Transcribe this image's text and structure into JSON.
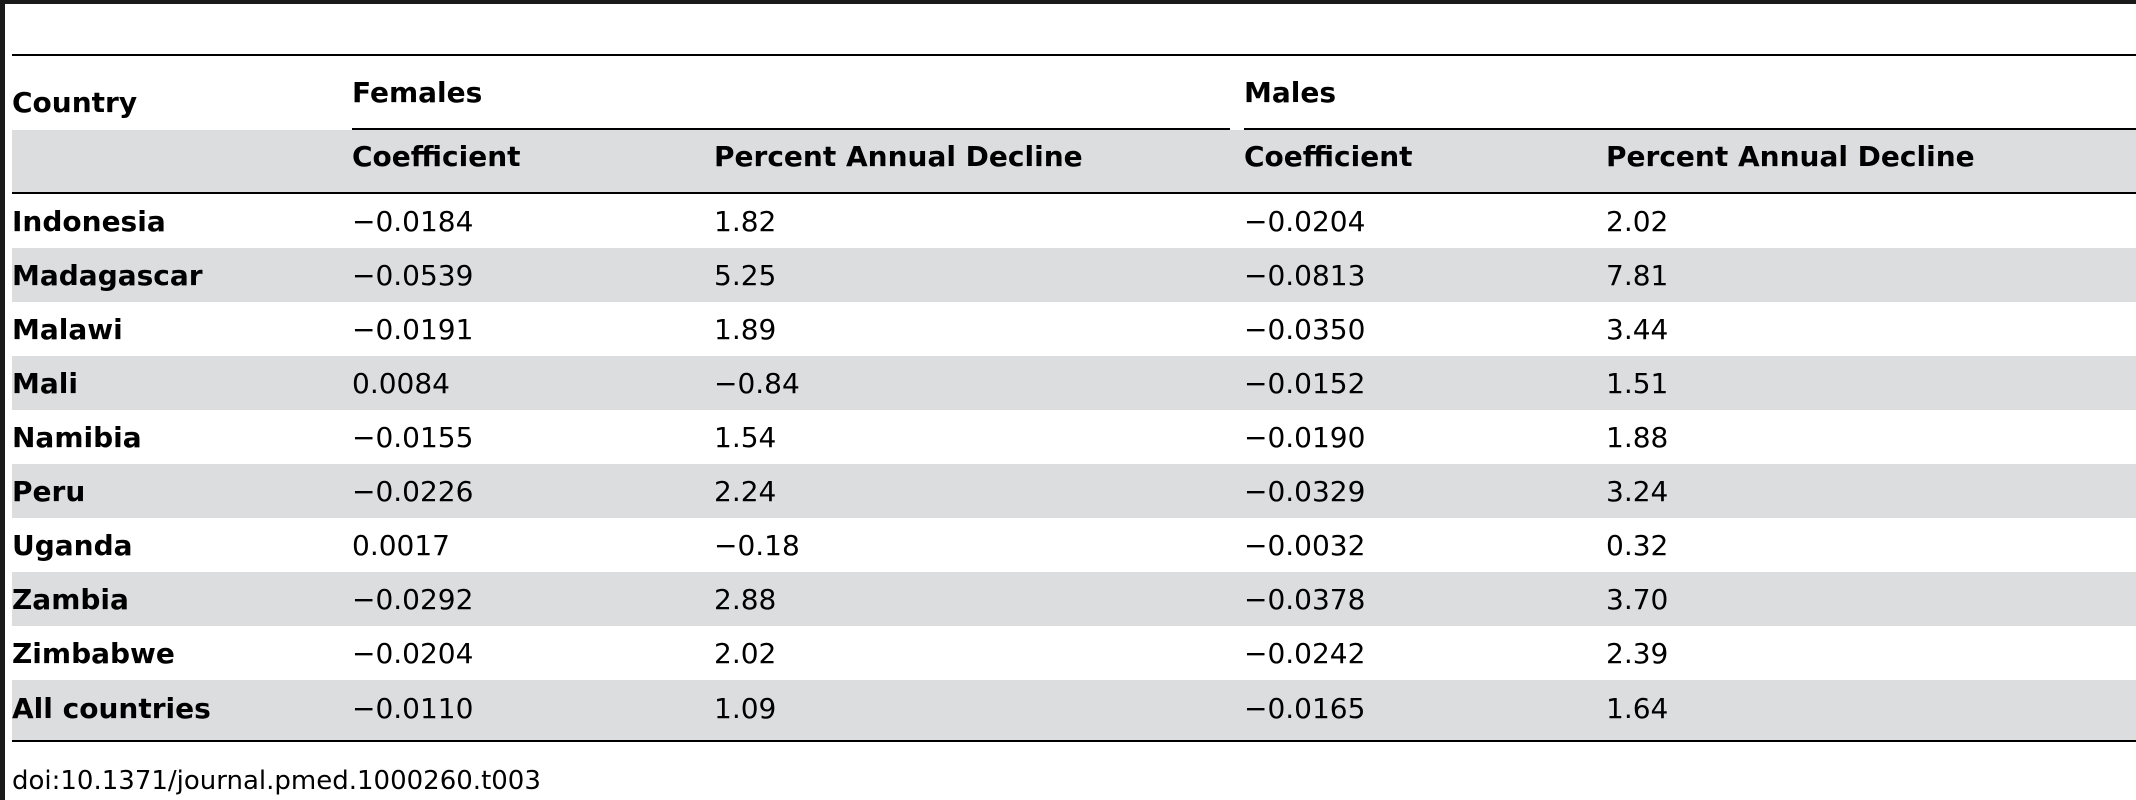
{
  "table": {
    "headers": {
      "country": "Country",
      "females": "Females",
      "males": "Males",
      "coefficient": "Coefficient",
      "percent_annual_decline": "Percent Annual Decline"
    },
    "rows": [
      {
        "country": "Indonesia",
        "f_coef": "−0.0184",
        "f_pct": "1.82",
        "m_coef": "−0.0204",
        "m_pct": "2.02"
      },
      {
        "country": "Madagascar",
        "f_coef": "−0.0539",
        "f_pct": "5.25",
        "m_coef": "−0.0813",
        "m_pct": "7.81"
      },
      {
        "country": "Malawi",
        "f_coef": "−0.0191",
        "f_pct": "1.89",
        "m_coef": "−0.0350",
        "m_pct": "3.44"
      },
      {
        "country": "Mali",
        "f_coef": "0.0084",
        "f_pct": "−0.84",
        "m_coef": "−0.0152",
        "m_pct": "1.51"
      },
      {
        "country": "Namibia",
        "f_coef": "−0.0155",
        "f_pct": "1.54",
        "m_coef": "−0.0190",
        "m_pct": "1.88"
      },
      {
        "country": "Peru",
        "f_coef": "−0.0226",
        "f_pct": "2.24",
        "m_coef": "−0.0329",
        "m_pct": "3.24"
      },
      {
        "country": "Uganda",
        "f_coef": "0.0017",
        "f_pct": "−0.18",
        "m_coef": "−0.0032",
        "m_pct": "0.32"
      },
      {
        "country": "Zambia",
        "f_coef": "−0.0292",
        "f_pct": "2.88",
        "m_coef": "−0.0378",
        "m_pct": "3.70"
      },
      {
        "country": "Zimbabwe",
        "f_coef": "−0.0204",
        "f_pct": "2.02",
        "m_coef": "−0.0242",
        "m_pct": "2.39"
      },
      {
        "country": "All countries",
        "f_coef": "−0.0110",
        "f_pct": "1.09",
        "m_coef": "−0.0165",
        "m_pct": "1.64"
      }
    ]
  },
  "footer": {
    "doi": "doi:10.1371/journal.pmed.1000260.t003"
  },
  "colors": {
    "band": "#dcdddf",
    "rule": "#000000"
  }
}
